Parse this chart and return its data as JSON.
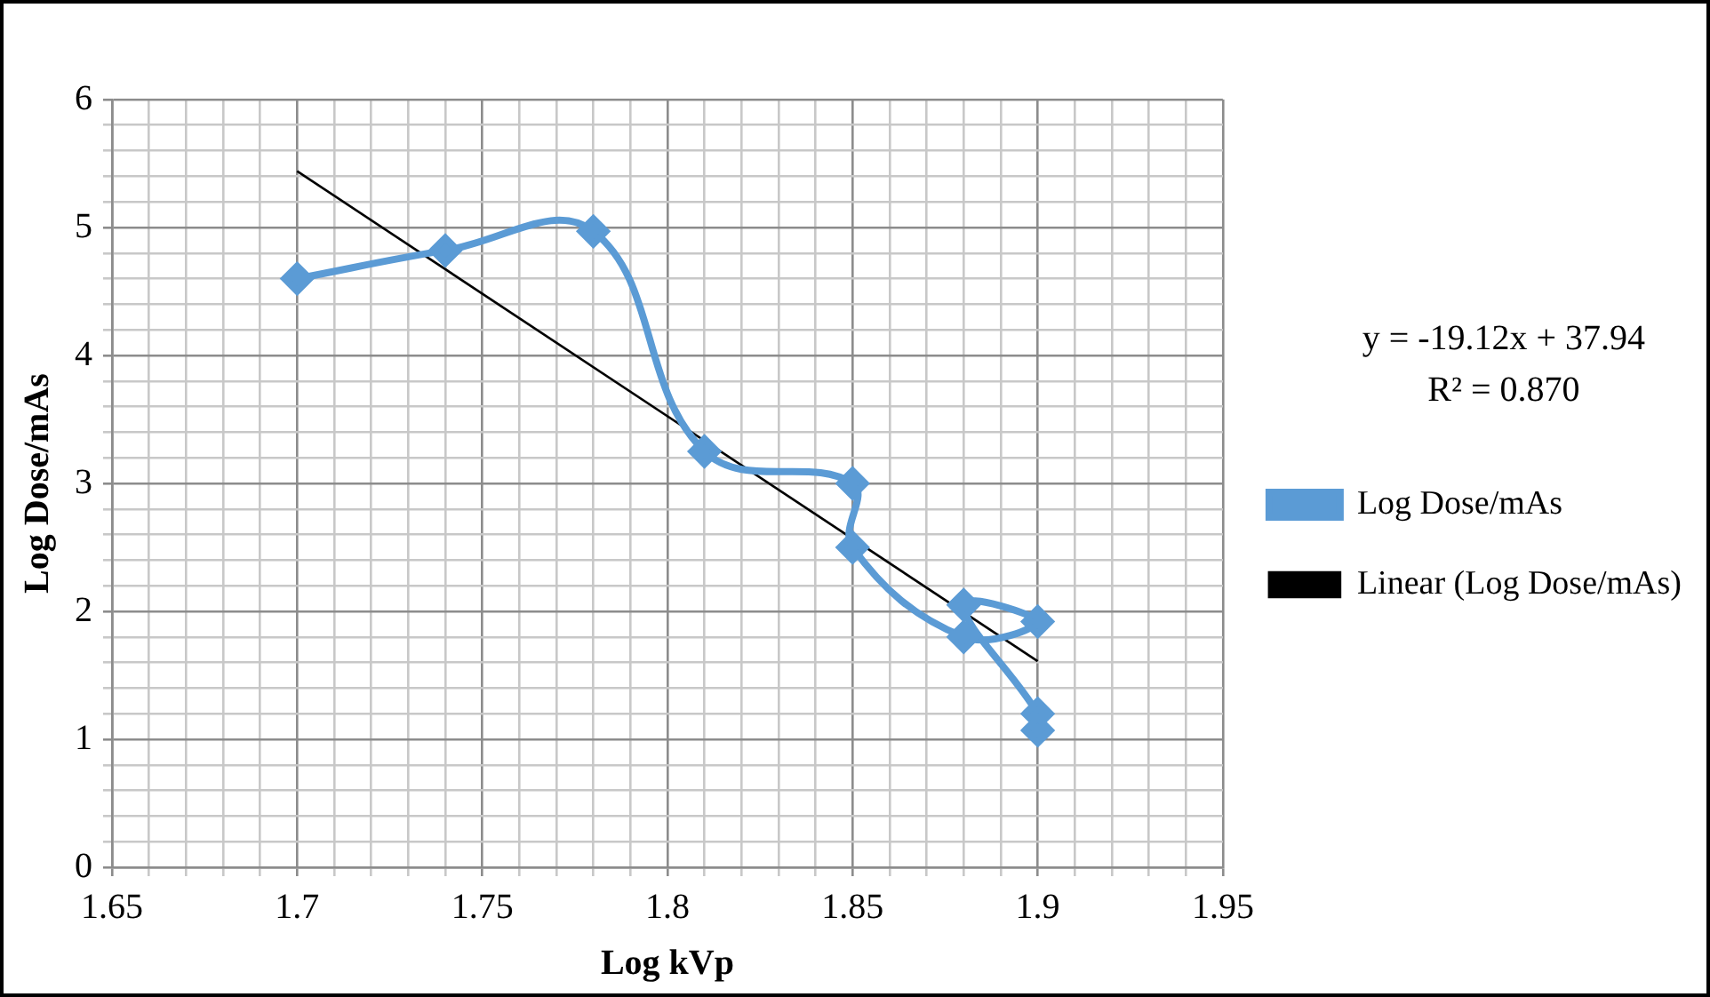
{
  "chart_data": {
    "type": "line",
    "xlabel": "Log kVp",
    "ylabel": "Log Dose/mAs",
    "series": [
      {
        "name": "Log Dose/mAs",
        "color": "#5b9bd5",
        "marker": "diamond",
        "x": [
          1.7,
          1.74,
          1.78,
          1.81,
          1.85,
          1.85,
          1.88,
          1.9,
          1.88,
          1.9,
          1.9
        ],
        "values": [
          4.6,
          4.82,
          4.97,
          3.25,
          3.0,
          2.5,
          1.8,
          1.92,
          2.05,
          1.2,
          1.07
        ]
      },
      {
        "name": "Linear (Log Dose/mAs)",
        "type": "line",
        "color": "#000000",
        "marker": "none",
        "x": [
          1.7,
          1.9
        ],
        "values": [
          5.44,
          1.61
        ]
      }
    ],
    "xlim": [
      1.65,
      1.95
    ],
    "xticks": [
      1.65,
      {
        "value": 1.66,
        "label": null
      },
      {
        "value": 1.67,
        "label": null
      },
      {
        "value": 1.68,
        "label": null
      },
      {
        "value": 1.69,
        "label": null
      },
      1.7,
      {
        "value": 1.71,
        "label": null
      },
      {
        "value": 1.72,
        "label": null
      },
      {
        "value": 1.73,
        "label": null
      },
      {
        "value": 1.74,
        "label": null
      },
      1.75,
      {
        "value": 1.76,
        "label": null
      },
      {
        "value": 1.77,
        "label": null
      },
      {
        "value": 1.78,
        "label": null
      },
      {
        "value": 1.79,
        "label": null
      },
      1.8,
      {
        "value": 1.81,
        "label": null
      },
      {
        "value": 1.82,
        "label": null
      },
      {
        "value": 1.83,
        "label": null
      },
      {
        "value": 1.84,
        "label": null
      },
      1.85,
      {
        "value": 1.86,
        "label": null
      },
      {
        "value": 1.87,
        "label": null
      },
      {
        "value": 1.88,
        "label": null
      },
      {
        "value": 1.89,
        "label": null
      },
      1.9,
      {
        "value": 1.91,
        "label": null
      },
      {
        "value": 1.92,
        "label": null
      },
      {
        "value": 1.93,
        "label": null
      },
      {
        "value": 1.94,
        "label": null
      },
      1.95
    ],
    "ylim": [
      0,
      6
    ],
    "yticks": [
      0,
      {
        "value": 0.2,
        "label": null
      },
      {
        "value": 0.4,
        "label": null
      },
      {
        "value": 0.6,
        "label": null
      },
      {
        "value": 0.8,
        "label": null
      },
      1,
      {
        "value": 1.2,
        "label": null
      },
      {
        "value": 1.4,
        "label": null
      },
      {
        "value": 1.6,
        "label": null
      },
      {
        "value": 1.8,
        "label": null
      },
      2,
      {
        "value": 2.2,
        "label": null
      },
      {
        "value": 2.4,
        "label": null
      },
      {
        "value": 2.6,
        "label": null
      },
      {
        "value": 2.8,
        "label": null
      },
      3,
      {
        "value": 3.2,
        "label": null
      },
      {
        "value": 3.4,
        "label": null
      },
      {
        "value": 3.6,
        "label": null
      },
      {
        "value": 3.8,
        "label": null
      },
      4,
      {
        "value": 4.2,
        "label": null
      },
      {
        "value": 4.4,
        "label": null
      },
      {
        "value": 4.6,
        "label": null
      },
      {
        "value": 4.8,
        "label": null
      },
      5,
      {
        "value": 5.2,
        "label": null
      },
      {
        "value": 5.4,
        "label": null
      },
      {
        "value": 5.6,
        "label": null
      },
      {
        "value": 5.8,
        "label": null
      },
      6
    ],
    "grid": true,
    "legend": "right",
    "annotations": [
      "y = -19.12x + 37.94",
      "R² = 0.870"
    ]
  }
}
